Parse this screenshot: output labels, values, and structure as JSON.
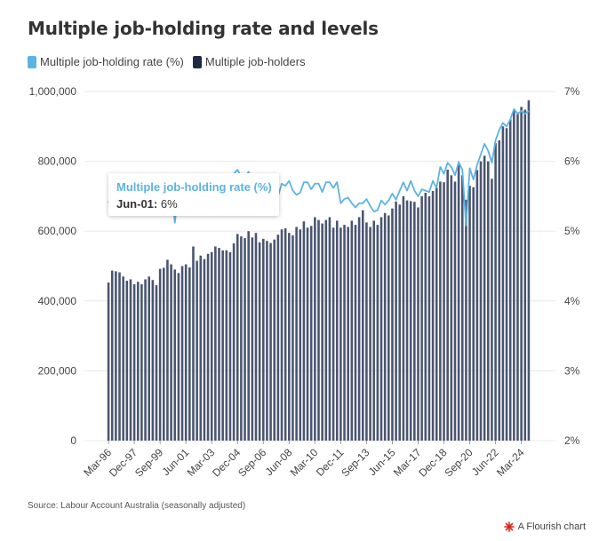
{
  "title": "Multiple job-holding rate and levels",
  "legend": [
    {
      "label": "Multiple job-holding rate (%)",
      "color": "#5db3e4"
    },
    {
      "label": "Multiple job-holders",
      "color": "#1f2a44"
    }
  ],
  "tooltip": {
    "title": "Multiple job-holding rate (%)",
    "label": "Jun-01:",
    "value": "6%"
  },
  "source": "Source: Labour Account Australia (seasonally adjusted)",
  "credit": "A Flourish chart",
  "colors": {
    "bars": "#4a5570",
    "line": "#5db3e4",
    "grid": "#e8e8e8",
    "credit_icon": "#d9231d"
  },
  "chart_data": {
    "type": "bar",
    "title": "Multiple job-holding rate and levels",
    "x_tick_labels": [
      "Mar-96",
      "Dec-97",
      "Sep-99",
      "Jun-01",
      "Mar-03",
      "Dec-04",
      "Sep-06",
      "Jun-08",
      "Mar-10",
      "Dec-11",
      "Sep-13",
      "Jun-15",
      "Mar-17",
      "Dec-18",
      "Sep-20",
      "Jun-22",
      "Mar-24"
    ],
    "left_axis": {
      "ticks": [
        "0",
        "200,000",
        "400,000",
        "600,000",
        "800,000",
        "1,000,000"
      ],
      "range": [
        0,
        1000000
      ]
    },
    "right_axis": {
      "ticks": [
        "2%",
        "3%",
        "4%",
        "5%",
        "6%",
        "7%"
      ],
      "range": [
        2,
        7
      ]
    },
    "x_start": "Mar-96",
    "frequency": "quarterly",
    "series": [
      {
        "name": "Multiple job-holders",
        "type": "bar",
        "axis": "left",
        "values": [
          453000,
          487000,
          485000,
          482000,
          470000,
          458000,
          462000,
          448000,
          455000,
          448000,
          462000,
          470000,
          460000,
          445000,
          492000,
          495000,
          518000,
          505000,
          490000,
          480000,
          500000,
          505000,
          496000,
          556000,
          515000,
          530000,
          520000,
          535000,
          540000,
          556000,
          552000,
          545000,
          545000,
          540000,
          565000,
          592000,
          585000,
          580000,
          600000,
          582000,
          595000,
          568000,
          578000,
          572000,
          566000,
          576000,
          590000,
          605000,
          608000,
          595000,
          588000,
          612000,
          605000,
          628000,
          610000,
          615000,
          640000,
          632000,
          622000,
          632000,
          640000,
          610000,
          630000,
          610000,
          618000,
          612000,
          630000,
          618000,
          640000,
          660000,
          625000,
          612000,
          630000,
          618000,
          640000,
          652000,
          645000,
          665000,
          685000,
          676000,
          700000,
          688000,
          686000,
          684000,
          668000,
          700000,
          710000,
          700000,
          715000,
          725000,
          742000,
          740000,
          776000,
          760000,
          742000,
          790000,
          760000,
          690000,
          730000,
          726000,
          775000,
          800000,
          816000,
          800000,
          750000,
          852000,
          860000,
          900000,
          895000,
          920000,
          946000,
          940000,
          956000,
          948000,
          975000
        ]
      },
      {
        "name": "Multiple job-holding rate (%)",
        "type": "line",
        "axis": "right",
        "values": [
          5.4,
          5.6,
          5.62,
          5.6,
          5.55,
          5.52,
          5.55,
          5.48,
          5.5,
          5.58,
          5.62,
          5.6,
          5.62,
          5.55,
          5.6,
          5.7,
          5.82,
          5.7,
          5.12,
          5.58,
          5.7,
          5.66,
          5.6,
          5.82,
          5.68,
          5.78,
          5.72,
          5.78,
          5.7,
          5.7,
          5.72,
          5.76,
          5.6,
          5.66,
          5.82,
          5.88,
          5.78,
          5.76,
          5.85,
          5.72,
          5.65,
          5.58,
          5.55,
          5.5,
          5.46,
          5.44,
          5.5,
          5.68,
          5.65,
          5.72,
          5.58,
          5.52,
          5.55,
          5.7,
          5.7,
          5.6,
          5.68,
          5.68,
          5.56,
          5.7,
          5.7,
          5.62,
          5.7,
          5.4,
          5.46,
          5.48,
          5.4,
          5.34,
          5.4,
          5.4,
          5.46,
          5.36,
          5.28,
          5.3,
          5.44,
          5.38,
          5.44,
          5.54,
          5.45,
          5.58,
          5.7,
          5.58,
          5.72,
          5.58,
          5.5,
          5.6,
          5.58,
          5.56,
          5.72,
          5.62,
          5.92,
          5.82,
          5.98,
          5.92,
          5.8,
          5.99,
          5.88,
          5.08,
          5.9,
          5.74,
          5.95,
          6.1,
          6.25,
          6.15,
          5.98,
          6.3,
          6.45,
          6.55,
          6.5,
          6.6,
          6.75,
          6.68,
          6.72,
          6.68,
          6.72
        ]
      }
    ],
    "grid": true,
    "legend_position": "top-left"
  }
}
